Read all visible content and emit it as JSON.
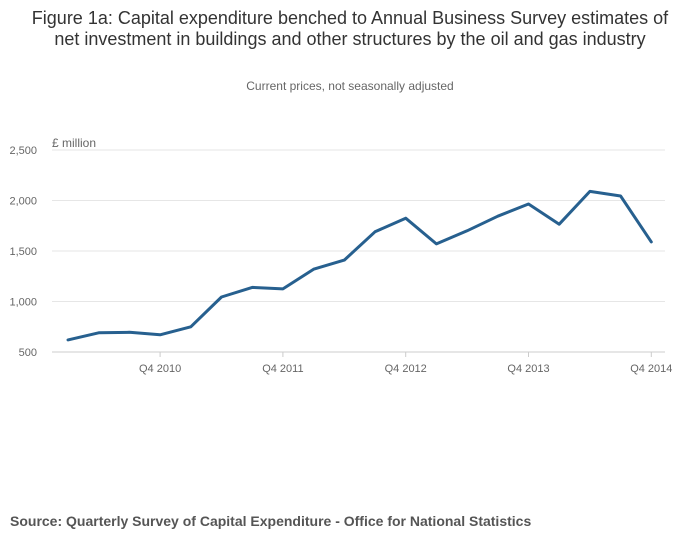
{
  "chart_data": {
    "type": "line",
    "title": "Figure 1a: Capital expenditure benched to Annual Business Survey estimates of net investment in buildings and other structures by the oil and gas industry",
    "subtitle": "Current prices, not seasonally adjusted",
    "ylabel": "£ million",
    "xlabel": "",
    "ylim": [
      500,
      2500
    ],
    "yticks": [
      500,
      1000,
      1500,
      2000,
      2500
    ],
    "ytick_labels": [
      "500",
      "1,000",
      "1,500",
      "2,000",
      "2,500"
    ],
    "grid": true,
    "x": [
      "Q1 2010",
      "Q2 2010",
      "Q3 2010",
      "Q4 2010",
      "Q1 2011",
      "Q2 2011",
      "Q3 2011",
      "Q4 2011",
      "Q1 2012",
      "Q2 2012",
      "Q3 2012",
      "Q4 2012",
      "Q1 2013",
      "Q2 2013",
      "Q3 2013",
      "Q4 2013",
      "Q1 2014",
      "Q2 2014",
      "Q3 2014",
      "Q4 2014"
    ],
    "xtick_labels": [
      "Q4 2010",
      "Q4 2011",
      "Q4 2012",
      "Q4 2013",
      "Q4 2014"
    ],
    "series": [
      {
        "values": [
          620,
          690,
          695,
          670,
          750,
          1045,
          1140,
          1125,
          1320,
          1410,
          1690,
          1825,
          1570,
          1700,
          1845,
          1965,
          1765,
          2090,
          2045,
          1590
        ],
        "color": "#27608f"
      }
    ]
  },
  "source": "Source: Quarterly Survey of Capital Expenditure - Office for National Statistics"
}
